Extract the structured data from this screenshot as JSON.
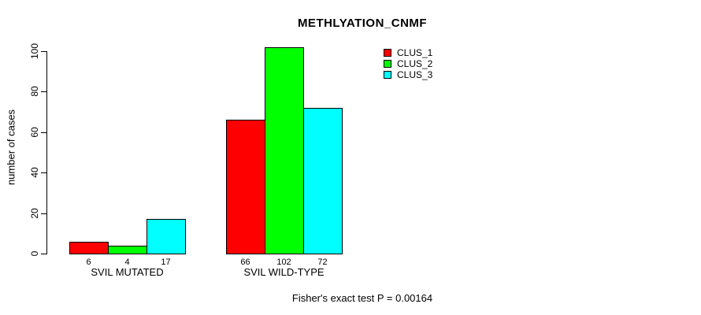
{
  "figure": {
    "background_color": "#ffffff",
    "axis_color": "#000000",
    "title": "METHLYATION_CNMF",
    "y_axis_label": "number of cases",
    "footnote": "Fisher's exact test P = 0.00164"
  },
  "chart_data": {
    "type": "bar",
    "title": "METHLYATION_CNMF",
    "xlabel": "",
    "ylabel": "number of cases",
    "categories": [
      "SVIL MUTATED",
      "SVIL WILD-TYPE"
    ],
    "series": [
      {
        "name": "CLUS_1",
        "color": "#ff0000",
        "values": [
          6,
          66
        ]
      },
      {
        "name": "CLUS_2",
        "color": "#00ff00",
        "values": [
          4,
          102
        ]
      },
      {
        "name": "CLUS_3",
        "color": "#00ffff",
        "values": [
          17,
          72
        ]
      }
    ],
    "bar_value_labels": [
      [
        6,
        4,
        17
      ],
      [
        66,
        102,
        72
      ]
    ],
    "yticks": [
      0,
      20,
      40,
      60,
      80,
      100
    ],
    "ylim": [
      0,
      102
    ],
    "grid": false,
    "legend": {
      "position": "top-right",
      "entries": [
        "CLUS_1",
        "CLUS_2",
        "CLUS_3"
      ]
    },
    "annotation": "Fisher's exact test P = 0.00164"
  }
}
